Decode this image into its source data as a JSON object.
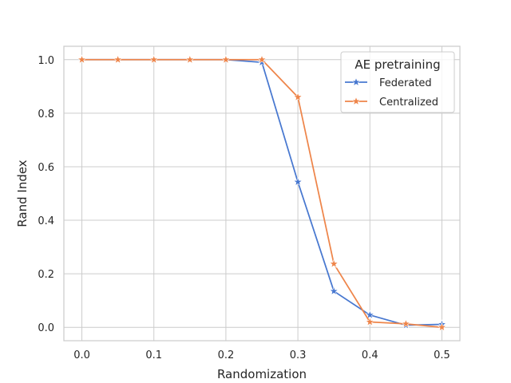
{
  "chart_data": {
    "type": "line",
    "title": "",
    "xlabel": "Randomization",
    "ylabel": "Rand Index",
    "xlim": [
      -0.025,
      0.525
    ],
    "ylim": [
      -0.05,
      1.05
    ],
    "xticks": [
      0.0,
      0.1,
      0.2,
      0.3,
      0.4,
      0.5
    ],
    "xtick_labels": [
      "0.0",
      "0.1",
      "0.2",
      "0.3",
      "0.4",
      "0.5"
    ],
    "yticks": [
      0.0,
      0.2,
      0.4,
      0.6,
      0.8,
      1.0
    ],
    "ytick_labels": [
      "0.0",
      "0.2",
      "0.4",
      "0.6",
      "0.8",
      "1.0"
    ],
    "grid": true,
    "legend": {
      "title": "AE pretraining",
      "placement": "top-right"
    },
    "x": [
      0.0,
      0.05,
      0.1,
      0.15,
      0.2,
      0.25,
      0.3,
      0.35,
      0.4,
      0.45,
      0.5
    ],
    "series": [
      {
        "name": "Federated",
        "color": "#4878d0",
        "marker": "star",
        "values": [
          1.0,
          1.0,
          1.0,
          1.0,
          1.0,
          0.99,
          0.543,
          0.135,
          0.046,
          0.008,
          0.011
        ]
      },
      {
        "name": "Centralized",
        "color": "#ee854a",
        "marker": "star",
        "values": [
          1.0,
          1.0,
          1.0,
          1.0,
          1.0,
          1.0,
          0.86,
          0.237,
          0.02,
          0.013,
          0.0
        ]
      }
    ]
  }
}
